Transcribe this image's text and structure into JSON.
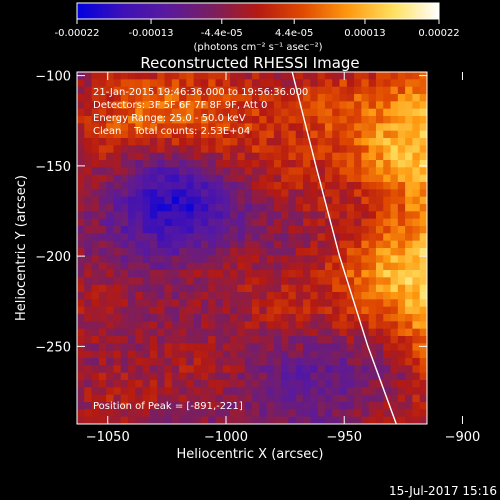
{
  "chart_data": {
    "type": "heatmap",
    "title": "Reconstructed RHESSI Image",
    "xlabel": "Heliocentric X (arcsec)",
    "ylabel": "Heliocentric Y (arcsec)",
    "xlim": [
      -1063,
      -915
    ],
    "ylim": [
      -293,
      -98
    ],
    "xticks": [
      -1050,
      -1000,
      -950,
      -900
    ],
    "xtick_labels": [
      "−1050",
      "−1000",
      "−950",
      "−900"
    ],
    "yticks": [
      -100,
      -150,
      -200,
      -250
    ],
    "ytick_labels": [
      "−100",
      "−150",
      "−200",
      "−250"
    ],
    "colorbar": {
      "ticks": [
        -0.00022,
        -0.00013,
        -4.4e-05,
        4.4e-05,
        0.00013,
        0.00022
      ],
      "tick_labels": [
        "-0.00022",
        "-0.00013",
        "-4.4e-05",
        "4.4e-05",
        "0.00013",
        "0.00022"
      ],
      "unit_label": "(photons cm⁻² s⁻¹ asec⁻²)",
      "range": [
        -0.00022,
        0.00022
      ],
      "colormap": [
        "#0000e0",
        "#3d10b8",
        "#5a1a9c",
        "#7a1e60",
        "#b51a12",
        "#e04a00",
        "#ff9a10",
        "#ffe060",
        "#ffffff"
      ]
    },
    "annotations": [
      "21-Jan-2015 19:46:36.000 to 19:56:36.000",
      "Detectors: 3F 5F 6F 7F 8F 9F, Att 0",
      "Energy Range: 25.0 - 50.0 keV",
      "Clean    Total counts: 2.53E+04"
    ],
    "peak_label": "Position of Peak = [-891,-221]",
    "peak": [
      -891,
      -221
    ],
    "limb": [
      [
        -972,
        -98
      ],
      [
        -962,
        -150
      ],
      [
        -952,
        -200
      ],
      [
        -940,
        -250
      ],
      [
        -928,
        -293
      ]
    ],
    "hot_regions": [
      {
        "x": -1045,
        "y": -160,
        "r": 22,
        "v": 8e-05
      },
      {
        "x": -1040,
        "y": -120,
        "r": 18,
        "v": 7e-05
      },
      {
        "x": -1008,
        "y": -125,
        "r": 26,
        "v": 0.0001
      },
      {
        "x": -975,
        "y": -160,
        "r": 22,
        "v": 5e-05
      },
      {
        "x": -1055,
        "y": -225,
        "r": 18,
        "v": 5e-05
      },
      {
        "x": -1005,
        "y": -205,
        "r": 14,
        "v": 7e-05
      },
      {
        "x": -975,
        "y": -228,
        "r": 16,
        "v": 5e-05
      },
      {
        "x": -1010,
        "y": -262,
        "r": 18,
        "v": 4e-05
      },
      {
        "x": -1048,
        "y": -280,
        "r": 14,
        "v": 5e-05
      },
      {
        "x": -908,
        "y": -125,
        "r": 26,
        "v": 0.00018
      },
      {
        "x": -900,
        "y": -172,
        "r": 18,
        "v": 0.0001
      },
      {
        "x": -896,
        "y": -215,
        "r": 30,
        "v": 0.0002
      },
      {
        "x": -892,
        "y": -252,
        "r": 18,
        "v": 0.00012
      },
      {
        "x": -935,
        "y": -210,
        "r": 16,
        "v": 8e-05
      },
      {
        "x": -932,
        "y": -145,
        "r": 14,
        "v": 6e-05
      },
      {
        "x": -925,
        "y": -285,
        "r": 16,
        "v": 6e-05
      },
      {
        "x": -955,
        "y": -115,
        "r": 14,
        "v": 6e-05
      }
    ],
    "cold_regions": [
      {
        "x": -1018,
        "y": -175,
        "r": 24,
        "v": -0.00012
      },
      {
        "x": -1030,
        "y": -160,
        "r": 18,
        "v": -0.0001
      },
      {
        "x": -968,
        "y": -268,
        "r": 16,
        "v": -5e-05
      },
      {
        "x": -930,
        "y": -268,
        "r": 14,
        "v": -5e-05
      }
    ],
    "grid": false
  },
  "footer": {
    "date": "15-Jul-2017 15:16"
  }
}
